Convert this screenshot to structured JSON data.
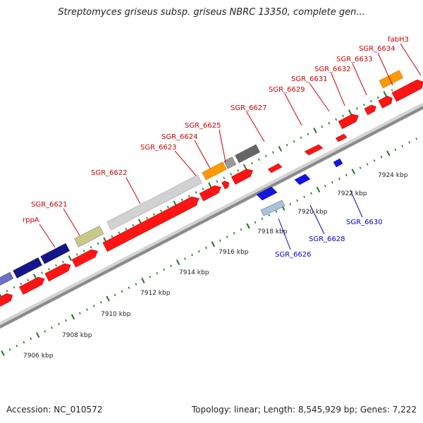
{
  "title": "Streptomyces griseus subsp. griseus NBRC 13350, complete gen...",
  "footer": {
    "accession": "Accession: NC_010572",
    "topology": "Topology: linear; Length: 8,545,929 bp; Genes: 7,222"
  },
  "colors": {
    "forward_label": "#cc0000",
    "reverse_label": "#0000cc",
    "tick_dots": "#1a7a1a",
    "backbone": "#9a9a9a"
  },
  "scale_labels": [
    "7906 kbp",
    "7908 kbp",
    "7910 kbp",
    "7912 kbp",
    "7914 kbp",
    "7916 kbp",
    "7918 kbp",
    "7920 kbp",
    "7922 kbp",
    "7924 kbp"
  ],
  "forward_gene_labels": [
    "rppA",
    "SGR_6621",
    "SGR_6622",
    "SGR_6623",
    "SGR_6624",
    "SGR_6625",
    "SGR_6627",
    "SGR_6629",
    "SGR_6631",
    "SGR_6632",
    "SGR_6633",
    "SGR_6634",
    "fabH3"
  ],
  "reverse_gene_labels": [
    "SGR_6626",
    "SGR_6628",
    "SGR_6630"
  ]
}
